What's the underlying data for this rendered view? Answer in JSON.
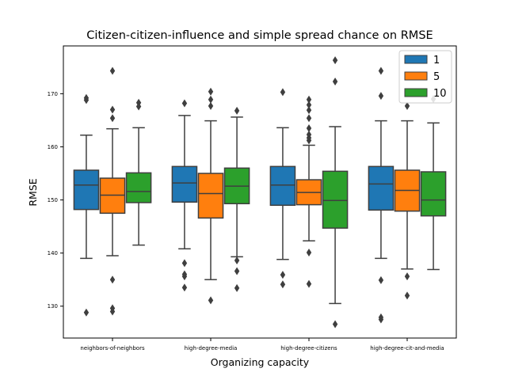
{
  "chart_data": {
    "type": "boxplot",
    "title": "Citizen-citizen-influence and simple spread chance on RMSE",
    "xlabel": "Organizing capacity",
    "ylabel": "RMSE",
    "categories": [
      "neighbors-of-neighbors",
      "high-degree-media",
      "high-degree-citizens",
      "high-degree-cit-and-media"
    ],
    "ylim": [
      124,
      179
    ],
    "yticks": [
      130,
      140,
      150,
      160,
      170
    ],
    "legend": {
      "title": "",
      "position": "top-right"
    },
    "series": [
      {
        "name": "1",
        "color": "#1f77b4",
        "boxes": [
          {
            "whislo": 139,
            "q1": 148.2,
            "med": 152.8,
            "q3": 155.6,
            "whishi": 162.2,
            "fliers": [
              169.2,
              168.8,
              128.8
            ]
          },
          {
            "whislo": 140.8,
            "q1": 149.6,
            "med": 153.2,
            "q3": 156.3,
            "whishi": 165.9,
            "fliers": [
              168.2,
              138.1,
              136,
              135.6,
              133.5
            ]
          },
          {
            "whislo": 138.8,
            "q1": 149,
            "med": 152.8,
            "q3": 156.3,
            "whishi": 163.6,
            "fliers": [
              170.3,
              135.9,
              134.1
            ]
          },
          {
            "whislo": 139,
            "q1": 148.1,
            "med": 153,
            "q3": 156.3,
            "whishi": 164.9,
            "fliers": [
              174.3,
              169.6,
              134.9,
              127.9,
              127.5
            ]
          }
        ]
      },
      {
        "name": "5",
        "color": "#ff7f0e",
        "boxes": [
          {
            "whislo": 139.5,
            "q1": 147.5,
            "med": 150.9,
            "q3": 154.1,
            "whishi": 163.4,
            "fliers": [
              174.3,
              167,
              165.4,
              135,
              129.6,
              129
            ]
          },
          {
            "whislo": 135,
            "q1": 146.6,
            "med": 151.2,
            "q3": 155,
            "whishi": 164.9,
            "fliers": [
              170.4,
              168.9,
              167.7,
              131.1
            ]
          },
          {
            "whislo": 142.3,
            "q1": 149.1,
            "med": 151.4,
            "q3": 153.8,
            "whishi": 160.3,
            "fliers": [
              168.9,
              167.9,
              166.9,
              165.4,
              163.5,
              162.3,
              161.7,
              161.2,
              140.1,
              134.2
            ]
          },
          {
            "whislo": 137,
            "q1": 147.9,
            "med": 151.8,
            "q3": 155.6,
            "whishi": 164.9,
            "fliers": [
              167.7,
              135.6,
              132
            ]
          }
        ]
      },
      {
        "name": "10",
        "color": "#2ca02c",
        "boxes": [
          {
            "whislo": 141.5,
            "q1": 149.5,
            "med": 151.6,
            "q3": 155.1,
            "whishi": 163.6,
            "fliers": [
              168.3,
              167.6
            ]
          },
          {
            "whislo": 139.3,
            "q1": 149.3,
            "med": 152.6,
            "q3": 156,
            "whishi": 165.6,
            "fliers": [
              166.8,
              138.6,
              136.6,
              133.4
            ]
          },
          {
            "whislo": 130.5,
            "q1": 144.7,
            "med": 149.9,
            "q3": 155.4,
            "whishi": 163.8,
            "fliers": [
              176.3,
              172.3,
              126.6
            ]
          },
          {
            "whislo": 136.9,
            "q1": 147,
            "med": 150,
            "q3": 155.3,
            "whishi": 164.5,
            "fliers": [
              169
            ]
          }
        ]
      }
    ]
  }
}
